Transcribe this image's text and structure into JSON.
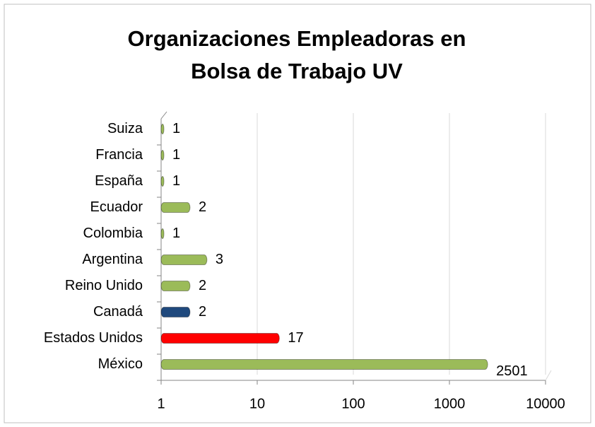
{
  "chart_data": {
    "type": "bar",
    "orientation": "horizontal",
    "title": "Organizaciones Empleadoras en Bolsa de Trabajo UV",
    "categories": [
      "Suiza",
      "Francia",
      "España",
      "Ecuador",
      "Colombia",
      "Argentina",
      "Reino Unido",
      "Canadá",
      "Estados Unidos",
      "México"
    ],
    "values": [
      1,
      1,
      1,
      2,
      1,
      3,
      2,
      2,
      17,
      2501
    ],
    "colors": [
      "#9bbb59",
      "#9bbb59",
      "#9bbb59",
      "#9bbb59",
      "#9bbb59",
      "#9bbb59",
      "#9bbb59",
      "#1f497d",
      "#ff0000",
      "#9bbb59"
    ],
    "xlim": [
      1,
      10000
    ],
    "xticks": [
      1,
      10,
      100,
      1000,
      10000
    ],
    "log_x": true,
    "grid": true
  }
}
